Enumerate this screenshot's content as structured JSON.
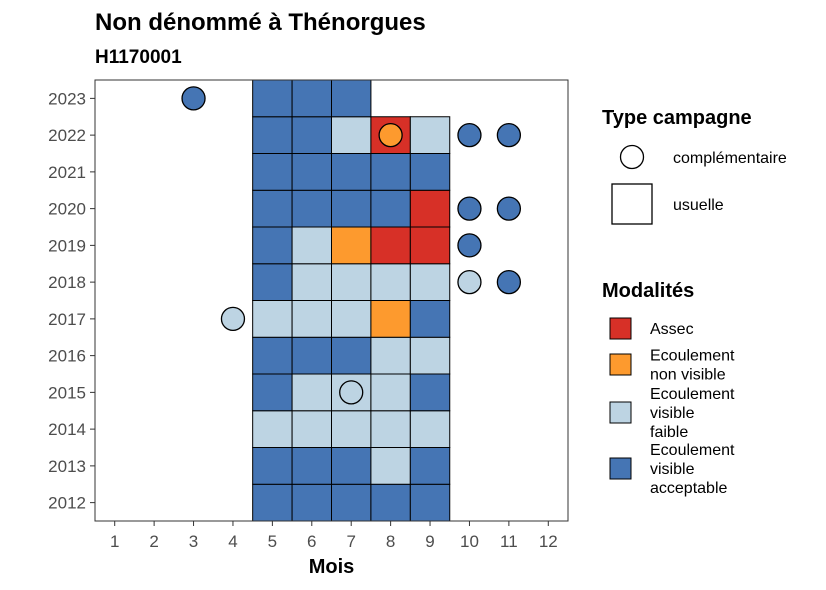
{
  "chart_data": {
    "type": "heatmap",
    "title": "Non dénommé à Thénorgues",
    "subtitle": "H1170001",
    "xlabel": "Mois",
    "ylabel": "",
    "x_ticks": [
      1,
      2,
      3,
      4,
      5,
      6,
      7,
      8,
      9,
      10,
      11,
      12
    ],
    "y_ticks": [
      2012,
      2013,
      2014,
      2015,
      2016,
      2017,
      2018,
      2019,
      2020,
      2021,
      2022,
      2023
    ],
    "xlim": [
      0.5,
      12.5
    ],
    "ylim": [
      2011.5,
      2023.5
    ],
    "legend_type": {
      "title": "Type campagne",
      "items": [
        {
          "key": "complementaire",
          "label": "complémentaire",
          "shape": "circle"
        },
        {
          "key": "usuelle",
          "label": "usuelle",
          "shape": "square"
        }
      ]
    },
    "legend_modalites": {
      "title": "Modalités",
      "items": [
        {
          "key": "A",
          "lines": [
            "Assec"
          ],
          "color": "#d73027"
        },
        {
          "key": "NV",
          "lines": [
            "Ecoulement",
            "non visible"
          ],
          "color": "#fd9a2e"
        },
        {
          "key": "VF",
          "lines": [
            "Ecoulement",
            "visible",
            "faible"
          ],
          "color": "#bdd4e3"
        },
        {
          "key": "VA",
          "lines": [
            "Ecoulement",
            "visible",
            "acceptable"
          ],
          "color": "#4575b4"
        }
      ]
    },
    "observations": [
      {
        "year": 2012,
        "month": 5,
        "mod": "VA",
        "type": "usuelle"
      },
      {
        "year": 2012,
        "month": 6,
        "mod": "VA",
        "type": "usuelle"
      },
      {
        "year": 2012,
        "month": 7,
        "mod": "VA",
        "type": "usuelle"
      },
      {
        "year": 2012,
        "month": 8,
        "mod": "VA",
        "type": "usuelle"
      },
      {
        "year": 2012,
        "month": 9,
        "mod": "VA",
        "type": "usuelle"
      },
      {
        "year": 2013,
        "month": 5,
        "mod": "VA",
        "type": "usuelle"
      },
      {
        "year": 2013,
        "month": 6,
        "mod": "VA",
        "type": "usuelle"
      },
      {
        "year": 2013,
        "month": 7,
        "mod": "VA",
        "type": "usuelle"
      },
      {
        "year": 2013,
        "month": 8,
        "mod": "VF",
        "type": "usuelle"
      },
      {
        "year": 2013,
        "month": 9,
        "mod": "VA",
        "type": "usuelle"
      },
      {
        "year": 2014,
        "month": 5,
        "mod": "VF",
        "type": "usuelle"
      },
      {
        "year": 2014,
        "month": 6,
        "mod": "VF",
        "type": "usuelle"
      },
      {
        "year": 2014,
        "month": 7,
        "mod": "VF",
        "type": "usuelle"
      },
      {
        "year": 2014,
        "month": 8,
        "mod": "VF",
        "type": "usuelle"
      },
      {
        "year": 2014,
        "month": 9,
        "mod": "VF",
        "type": "usuelle"
      },
      {
        "year": 2015,
        "month": 5,
        "mod": "VA",
        "type": "usuelle"
      },
      {
        "year": 2015,
        "month": 6,
        "mod": "VF",
        "type": "usuelle"
      },
      {
        "year": 2015,
        "month": 7,
        "mod": "VF",
        "type": "usuelle"
      },
      {
        "year": 2015,
        "month": 8,
        "mod": "VF",
        "type": "usuelle"
      },
      {
        "year": 2015,
        "month": 9,
        "mod": "VA",
        "type": "usuelle"
      },
      {
        "year": 2016,
        "month": 5,
        "mod": "VA",
        "type": "usuelle"
      },
      {
        "year": 2016,
        "month": 6,
        "mod": "VA",
        "type": "usuelle"
      },
      {
        "year": 2016,
        "month": 7,
        "mod": "VA",
        "type": "usuelle"
      },
      {
        "year": 2016,
        "month": 8,
        "mod": "VF",
        "type": "usuelle"
      },
      {
        "year": 2016,
        "month": 9,
        "mod": "VF",
        "type": "usuelle"
      },
      {
        "year": 2017,
        "month": 5,
        "mod": "VF",
        "type": "usuelle"
      },
      {
        "year": 2017,
        "month": 6,
        "mod": "VF",
        "type": "usuelle"
      },
      {
        "year": 2017,
        "month": 7,
        "mod": "VF",
        "type": "usuelle"
      },
      {
        "year": 2017,
        "month": 8,
        "mod": "NV",
        "type": "usuelle"
      },
      {
        "year": 2017,
        "month": 9,
        "mod": "VA",
        "type": "usuelle"
      },
      {
        "year": 2018,
        "month": 5,
        "mod": "VA",
        "type": "usuelle"
      },
      {
        "year": 2018,
        "month": 6,
        "mod": "VF",
        "type": "usuelle"
      },
      {
        "year": 2018,
        "month": 7,
        "mod": "VF",
        "type": "usuelle"
      },
      {
        "year": 2018,
        "month": 8,
        "mod": "VF",
        "type": "usuelle"
      },
      {
        "year": 2018,
        "month": 9,
        "mod": "VF",
        "type": "usuelle"
      },
      {
        "year": 2019,
        "month": 5,
        "mod": "VA",
        "type": "usuelle"
      },
      {
        "year": 2019,
        "month": 6,
        "mod": "VF",
        "type": "usuelle"
      },
      {
        "year": 2019,
        "month": 7,
        "mod": "NV",
        "type": "usuelle"
      },
      {
        "year": 2019,
        "month": 8,
        "mod": "A",
        "type": "usuelle"
      },
      {
        "year": 2019,
        "month": 9,
        "mod": "A",
        "type": "usuelle"
      },
      {
        "year": 2020,
        "month": 5,
        "mod": "VA",
        "type": "usuelle"
      },
      {
        "year": 2020,
        "month": 6,
        "mod": "VA",
        "type": "usuelle"
      },
      {
        "year": 2020,
        "month": 7,
        "mod": "VA",
        "type": "usuelle"
      },
      {
        "year": 2020,
        "month": 8,
        "mod": "VA",
        "type": "usuelle"
      },
      {
        "year": 2020,
        "month": 9,
        "mod": "A",
        "type": "usuelle"
      },
      {
        "year": 2021,
        "month": 5,
        "mod": "VA",
        "type": "usuelle"
      },
      {
        "year": 2021,
        "month": 6,
        "mod": "VA",
        "type": "usuelle"
      },
      {
        "year": 2021,
        "month": 7,
        "mod": "VA",
        "type": "usuelle"
      },
      {
        "year": 2021,
        "month": 8,
        "mod": "VA",
        "type": "usuelle"
      },
      {
        "year": 2021,
        "month": 9,
        "mod": "VA",
        "type": "usuelle"
      },
      {
        "year": 2022,
        "month": 5,
        "mod": "VA",
        "type": "usuelle"
      },
      {
        "year": 2022,
        "month": 6,
        "mod": "VA",
        "type": "usuelle"
      },
      {
        "year": 2022,
        "month": 7,
        "mod": "VF",
        "type": "usuelle"
      },
      {
        "year": 2022,
        "month": 8,
        "mod": "A",
        "type": "usuelle"
      },
      {
        "year": 2022,
        "month": 9,
        "mod": "VF",
        "type": "usuelle"
      },
      {
        "year": 2023,
        "month": 5,
        "mod": "VA",
        "type": "usuelle"
      },
      {
        "year": 2023,
        "month": 6,
        "mod": "VA",
        "type": "usuelle"
      },
      {
        "year": 2023,
        "month": 7,
        "mod": "VA",
        "type": "usuelle"
      },
      {
        "year": 2023,
        "month": 3,
        "mod": "VA",
        "type": "complementaire"
      },
      {
        "year": 2022,
        "month": 8,
        "mod": "NV",
        "type": "complementaire"
      },
      {
        "year": 2022,
        "month": 10,
        "mod": "VA",
        "type": "complementaire"
      },
      {
        "year": 2022,
        "month": 11,
        "mod": "VA",
        "type": "complementaire"
      },
      {
        "year": 2020,
        "month": 10,
        "mod": "VA",
        "type": "complementaire"
      },
      {
        "year": 2020,
        "month": 11,
        "mod": "VA",
        "type": "complementaire"
      },
      {
        "year": 2019,
        "month": 10,
        "mod": "VA",
        "type": "complementaire"
      },
      {
        "year": 2018,
        "month": 10,
        "mod": "VF",
        "type": "complementaire"
      },
      {
        "year": 2018,
        "month": 11,
        "mod": "VA",
        "type": "complementaire"
      },
      {
        "year": 2017,
        "month": 4,
        "mod": "VF",
        "type": "complementaire"
      },
      {
        "year": 2015,
        "month": 7,
        "mod": "VF",
        "type": "complementaire"
      }
    ]
  }
}
